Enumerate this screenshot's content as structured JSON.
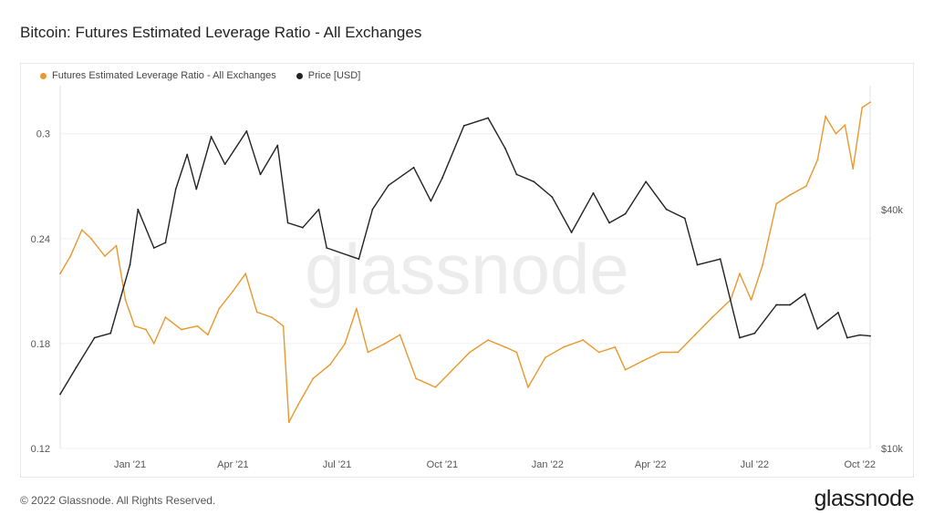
{
  "title": "Bitcoin: Futures Estimated Leverage Ratio - All Exchanges",
  "footer": "© 2022 Glassnode. All Rights Reserved.",
  "logo": "glassnode",
  "watermark": "glassnode",
  "colors": {
    "leverage": "#e8982e",
    "price": "#222222",
    "grid": "#f0f0f0"
  },
  "chart_data": {
    "type": "line",
    "title": "Bitcoin: Futures Estimated Leverage Ratio - All Exchanges",
    "legend_position": "top-left",
    "grid": true,
    "x_start": "2020-11-01",
    "x_end": "2022-10-10",
    "x_ticks": [
      {
        "date": "2021-01-01",
        "label": "Jan '21"
      },
      {
        "date": "2021-04-01",
        "label": "Apr '21"
      },
      {
        "date": "2021-07-01",
        "label": "Jul '21"
      },
      {
        "date": "2021-10-01",
        "label": "Oct '21"
      },
      {
        "date": "2022-01-01",
        "label": "Jan '22"
      },
      {
        "date": "2022-04-01",
        "label": "Apr '22"
      },
      {
        "date": "2022-07-01",
        "label": "Jul '22"
      },
      {
        "date": "2022-10-01",
        "label": "Oct '22"
      }
    ],
    "y_left": {
      "ticks": [
        0.12,
        0.18,
        0.24,
        0.3
      ],
      "tick_labels": [
        "0.12",
        "0.18",
        "0.24",
        "0.3"
      ],
      "range": [
        0.12,
        0.3275
      ]
    },
    "y_right": {
      "scale": "log",
      "ticks": [
        10000,
        40000
      ],
      "tick_labels": [
        "$10k",
        "$40k"
      ],
      "range": [
        10000,
        82000
      ]
    },
    "series": [
      {
        "name": "Futures Estimated Leverage Ratio - All Exchanges",
        "axis": "left",
        "points": [
          [
            "2020-11-01",
            0.22
          ],
          [
            "2020-11-10",
            0.23
          ],
          [
            "2020-11-20",
            0.245
          ],
          [
            "2020-11-28",
            0.24
          ],
          [
            "2020-12-10",
            0.23
          ],
          [
            "2020-12-20",
            0.236
          ],
          [
            "2020-12-28",
            0.205
          ],
          [
            "2021-01-05",
            0.19
          ],
          [
            "2021-01-15",
            0.188
          ],
          [
            "2021-01-22",
            0.18
          ],
          [
            "2021-02-01",
            0.195
          ],
          [
            "2021-02-15",
            0.188
          ],
          [
            "2021-03-01",
            0.19
          ],
          [
            "2021-03-10",
            0.185
          ],
          [
            "2021-03-20",
            0.2
          ],
          [
            "2021-04-01",
            0.21
          ],
          [
            "2021-04-12",
            0.22
          ],
          [
            "2021-04-22",
            0.198
          ],
          [
            "2021-05-05",
            0.195
          ],
          [
            "2021-05-15",
            0.19
          ],
          [
            "2021-05-20",
            0.135
          ],
          [
            "2021-05-28",
            0.145
          ],
          [
            "2021-06-10",
            0.16
          ],
          [
            "2021-06-25",
            0.168
          ],
          [
            "2021-07-08",
            0.18
          ],
          [
            "2021-07-18",
            0.2
          ],
          [
            "2021-07-28",
            0.175
          ],
          [
            "2021-08-12",
            0.18
          ],
          [
            "2021-08-25",
            0.185
          ],
          [
            "2021-09-08",
            0.16
          ],
          [
            "2021-09-25",
            0.155
          ],
          [
            "2021-10-10",
            0.165
          ],
          [
            "2021-10-25",
            0.175
          ],
          [
            "2021-11-10",
            0.182
          ],
          [
            "2021-11-25",
            0.178
          ],
          [
            "2021-12-05",
            0.175
          ],
          [
            "2021-12-15",
            0.155
          ],
          [
            "2021-12-30",
            0.172
          ],
          [
            "2022-01-15",
            0.178
          ],
          [
            "2022-02-01",
            0.182
          ],
          [
            "2022-02-15",
            0.175
          ],
          [
            "2022-03-01",
            0.178
          ],
          [
            "2022-03-10",
            0.165
          ],
          [
            "2022-03-25",
            0.17
          ],
          [
            "2022-04-10",
            0.175
          ],
          [
            "2022-04-25",
            0.175
          ],
          [
            "2022-05-10",
            0.185
          ],
          [
            "2022-05-25",
            0.195
          ],
          [
            "2022-06-10",
            0.205
          ],
          [
            "2022-06-18",
            0.22
          ],
          [
            "2022-06-28",
            0.205
          ],
          [
            "2022-07-08",
            0.225
          ],
          [
            "2022-07-20",
            0.26
          ],
          [
            "2022-08-01",
            0.265
          ],
          [
            "2022-08-15",
            0.27
          ],
          [
            "2022-08-25",
            0.285
          ],
          [
            "2022-09-01",
            0.31
          ],
          [
            "2022-09-10",
            0.3
          ],
          [
            "2022-09-18",
            0.305
          ],
          [
            "2022-09-25",
            0.28
          ],
          [
            "2022-10-03",
            0.315
          ],
          [
            "2022-10-10",
            0.318
          ]
        ]
      },
      {
        "name": "Price [USD]",
        "axis": "right",
        "points": [
          [
            "2020-11-01",
            13700
          ],
          [
            "2020-11-15",
            16000
          ],
          [
            "2020-12-01",
            19000
          ],
          [
            "2020-12-15",
            19500
          ],
          [
            "2021-01-01",
            29000
          ],
          [
            "2021-01-08",
            40000
          ],
          [
            "2021-01-22",
            32000
          ],
          [
            "2021-02-01",
            33000
          ],
          [
            "2021-02-10",
            45000
          ],
          [
            "2021-02-20",
            55000
          ],
          [
            "2021-02-28",
            45000
          ],
          [
            "2021-03-13",
            61000
          ],
          [
            "2021-03-25",
            52000
          ],
          [
            "2021-04-13",
            63000
          ],
          [
            "2021-04-25",
            49000
          ],
          [
            "2021-05-10",
            58000
          ],
          [
            "2021-05-19",
            37000
          ],
          [
            "2021-06-01",
            36000
          ],
          [
            "2021-06-15",
            40000
          ],
          [
            "2021-06-22",
            32000
          ],
          [
            "2021-07-20",
            30000
          ],
          [
            "2021-08-01",
            40000
          ],
          [
            "2021-08-15",
            46000
          ],
          [
            "2021-09-06",
            51000
          ],
          [
            "2021-09-21",
            42000
          ],
          [
            "2021-10-01",
            48000
          ],
          [
            "2021-10-20",
            65000
          ],
          [
            "2021-11-10",
            68000
          ],
          [
            "2021-11-25",
            57000
          ],
          [
            "2021-12-05",
            49000
          ],
          [
            "2021-12-20",
            47000
          ],
          [
            "2022-01-05",
            43000
          ],
          [
            "2022-01-22",
            35000
          ],
          [
            "2022-02-10",
            44000
          ],
          [
            "2022-02-24",
            37000
          ],
          [
            "2022-03-10",
            39000
          ],
          [
            "2022-03-28",
            47000
          ],
          [
            "2022-04-15",
            40000
          ],
          [
            "2022-05-01",
            38000
          ],
          [
            "2022-05-12",
            29000
          ],
          [
            "2022-06-01",
            30000
          ],
          [
            "2022-06-18",
            19000
          ],
          [
            "2022-07-01",
            19500
          ],
          [
            "2022-07-20",
            23000
          ],
          [
            "2022-08-01",
            23000
          ],
          [
            "2022-08-14",
            24500
          ],
          [
            "2022-08-25",
            20000
          ],
          [
            "2022-09-12",
            22000
          ],
          [
            "2022-09-20",
            19000
          ],
          [
            "2022-10-01",
            19300
          ],
          [
            "2022-10-10",
            19200
          ]
        ]
      }
    ]
  }
}
